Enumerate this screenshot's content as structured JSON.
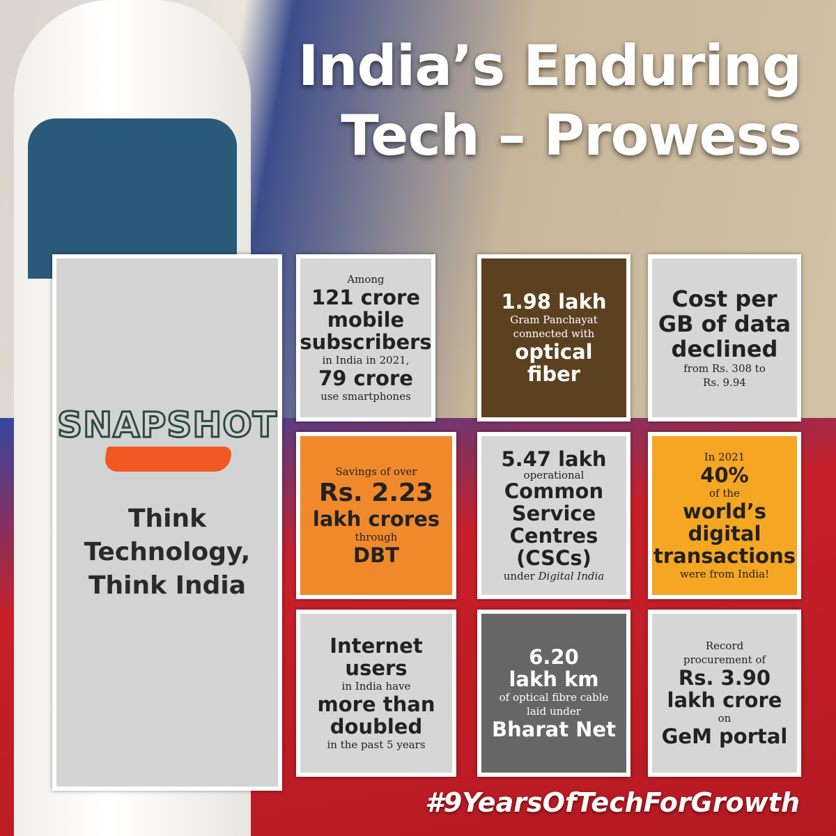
{
  "header": {
    "title": [
      "India’s Enduring",
      "Tech – Prowess"
    ]
  },
  "snapshot": {
    "logo": "SNAPSHOT",
    "tagline": [
      "Think",
      "Technology,",
      "Think India"
    ]
  },
  "cards": [
    [
      "Among",
      "121 crore",
      "mobile",
      "subscribers",
      "in India in 2021,",
      "79 crore",
      "use smartphones"
    ],
    [
      "1.98 lakh",
      "Gram Panchayat",
      "connected with",
      "optical",
      "fiber"
    ],
    [
      "Cost per",
      "GB of data",
      "declined",
      "from Rs. 308 to",
      "Rs. 9.94"
    ],
    [
      "Savings of over",
      "Rs. 2.23",
      "lakh crores",
      "through",
      "DBT"
    ],
    [
      "5.47 lakh",
      "operational",
      "Common",
      "Service",
      "Centres",
      "(CSCs)",
      "under",
      "Digital India"
    ],
    [
      "In 2021",
      "40%",
      "of the",
      "world’s",
      "digital",
      "transactions",
      "were from India!"
    ],
    [
      "Internet",
      "users",
      "in India have",
      "more than",
      "doubled",
      "in the past 5 years"
    ],
    [
      "6.20",
      "lakh km",
      "of optical fibre cable",
      "laid under",
      "Bharat Net"
    ],
    [
      "Record",
      "procurement of",
      "Rs. 3.90",
      "lakh crore",
      "on",
      "GeM portal"
    ]
  ],
  "footer": {
    "hashtag": "#9YearsOfTechForGrowth"
  }
}
